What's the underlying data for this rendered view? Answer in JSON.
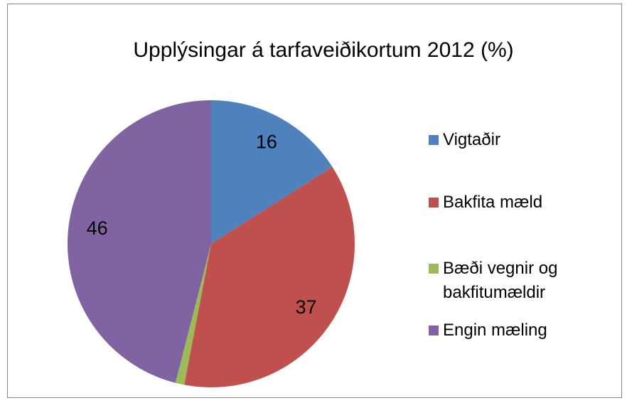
{
  "chart_data": {
    "type": "pie",
    "title": "Upplýsingar á tarfaveiðikortum 2012 (%)",
    "categories": [
      "Vigtaðir",
      "Bakfita mæld",
      "Bæði vegnir og bakfitumældir",
      "Engin mæling"
    ],
    "values": [
      16,
      37,
      1,
      46
    ],
    "value_labels": [
      "16",
      "37",
      null,
      "46"
    ],
    "colors": [
      "#4f81bd",
      "#c0504d",
      "#9bbb59",
      "#8064a2"
    ],
    "legend": "right"
  }
}
